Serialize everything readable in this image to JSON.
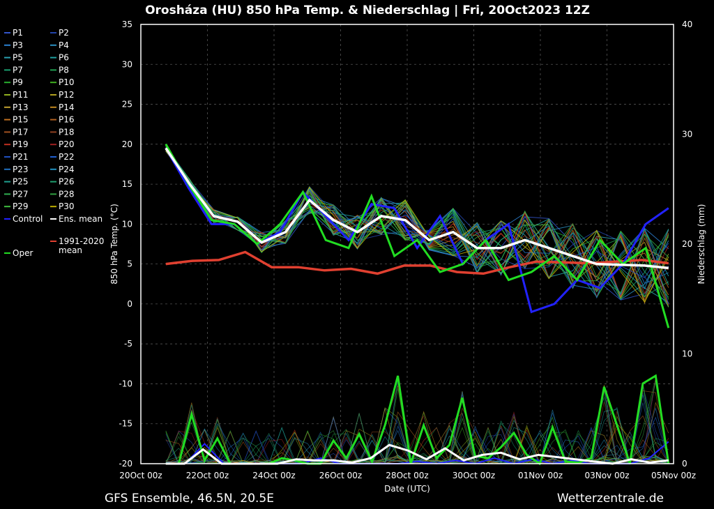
{
  "chart_data": {
    "type": "line",
    "title": "Orosháza  (HU)  850 hPa Temp. & Niederschlag | Fri, 20Oct2023 12Z",
    "xlabel": "Date (UTC)",
    "ylabel": "850 hPa Temp. (°C)",
    "y2label": "Niederschlag (mm)",
    "ylim": [
      -20,
      35
    ],
    "y2lim": [
      0,
      40
    ],
    "yticks": [
      "35",
      "30",
      "25",
      "20",
      "15",
      "10",
      "5",
      "0",
      "-5",
      "-10",
      "-15",
      "-20"
    ],
    "y2ticks": [
      "40",
      "30",
      "20",
      "10",
      "0"
    ],
    "xlim": [
      0,
      16
    ],
    "xticks": [
      "20Oct 00z",
      "22Oct 00z",
      "24Oct 00z",
      "26Oct 00z",
      "28Oct 00z",
      "30Oct 00z",
      "01Nov 00z",
      "03Nov 00z",
      "05Nov 00z"
    ],
    "grid": true,
    "footer_left": "GFS Ensemble, 46.5N, 20.5E",
    "footer_right": "Wetterzentrale.de",
    "legend": {
      "members": [
        "P1",
        "P2",
        "P3",
        "P4",
        "P5",
        "P6",
        "P7",
        "P8",
        "P9",
        "P10",
        "P11",
        "P12",
        "P13",
        "P14",
        "P15",
        "P16",
        "P17",
        "P18",
        "P19",
        "P20",
        "P21",
        "P22",
        "P23",
        "P24",
        "P25",
        "P26",
        "P27",
        "P28",
        "P29",
        "P30"
      ],
      "control": "Control",
      "ens_mean": "Ens. mean",
      "climate_mean": "1991-2020\nmean",
      "oper": "Oper"
    },
    "colors": {
      "control": "#2222ff",
      "ens_mean": "#ffffff",
      "climate": "#e04030",
      "oper": "#22dd22",
      "members": [
        "#3355cc",
        "#2244aa",
        "#2a7fd0",
        "#2a90c0",
        "#2aa0b0",
        "#20a0a0",
        "#1aa070",
        "#20a050",
        "#28b030",
        "#40b020",
        "#90b020",
        "#b0a020",
        "#c0a030",
        "#c08820",
        "#c07020",
        "#b06020",
        "#a05020",
        "#904020",
        "#c03020",
        "#a02020",
        "#2050c0",
        "#2060d0",
        "#2070c0",
        "#2090c0",
        "#20a090",
        "#20a070",
        "#30b050",
        "#30a040",
        "#40c040",
        "#c0b000"
      ]
    },
    "ens_mean_temp": [
      19.5,
      15,
      11,
      10.3,
      7.7,
      9,
      13,
      10.5,
      9,
      11,
      10.5,
      8,
      9,
      7,
      7,
      8,
      7,
      6,
      5,
      4.9,
      4.8,
      4.5
    ],
    "control_temp": [
      19.5,
      14.5,
      10,
      10,
      7.5,
      9,
      14,
      11,
      8,
      12.5,
      12,
      7,
      11,
      5,
      8,
      10,
      -1,
      0,
      3,
      2,
      5,
      10,
      12
    ],
    "oper_temp": [
      20,
      15,
      10.5,
      10,
      7.5,
      10,
      14,
      8,
      7,
      13.5,
      6,
      8,
      4,
      5,
      8,
      3,
      4,
      6,
      3,
      8,
      5,
      7,
      -3
    ],
    "climate_temp": [
      5,
      5.4,
      5.5,
      6.5,
      4.6,
      4.6,
      4.2,
      4.4,
      3.8,
      4.8,
      4.8,
      4,
      3.8,
      4.6,
      5.3,
      5.2,
      5.1,
      5.3,
      5.5,
      5.1
    ],
    "ens_mean_precip": [
      0,
      0,
      1.3,
      0,
      0,
      0,
      0,
      0.4,
      0.3,
      0.3,
      0.1,
      0.5,
      1.7,
      1.2,
      0.4,
      1.4,
      0.3,
      0.8,
      1,
      0.4,
      0.8,
      0.6,
      0.4,
      0.2,
      0,
      0.4,
      0.1,
      0.3
    ],
    "control_precip": [
      0,
      0,
      1.8,
      0,
      0,
      0,
      0,
      0,
      0.5,
      0,
      0,
      0,
      0,
      0.2,
      0,
      0.3,
      0,
      0.5,
      0,
      0.4,
      0,
      0.3,
      0,
      0,
      0,
      0.5,
      2
    ],
    "oper_precip": [
      0,
      0,
      4.5,
      0.3,
      2.3,
      0,
      0,
      0,
      0,
      0.5,
      0.3,
      0,
      0,
      2.1,
      0.5,
      2.7,
      0.2,
      3.5,
      8,
      0,
      3.5,
      0.5,
      1.7,
      6,
      0.7,
      0.5,
      1.5,
      2.8,
      0.8,
      0,
      3.3,
      0.2,
      0.1,
      0.5,
      7,
      3.5,
      0,
      7.3,
      8,
      0
    ]
  }
}
